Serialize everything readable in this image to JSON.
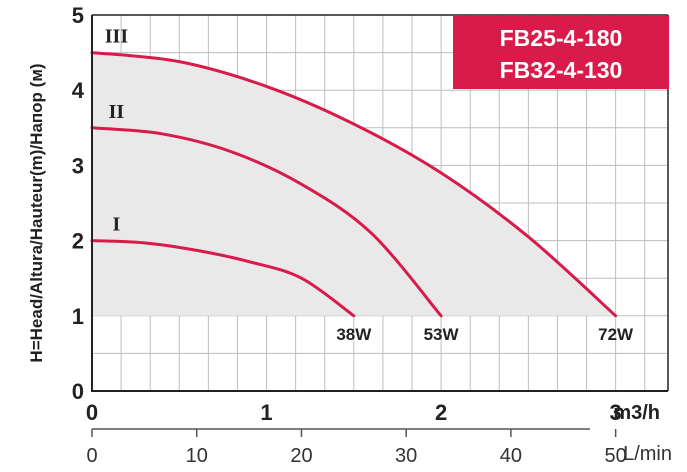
{
  "chart_data": {
    "type": "line",
    "ylabel": "H=Head/Altura/Hauteur(m)/Напор (м)",
    "x_unit": "m3/h",
    "x2_unit": "L/min",
    "xlim": [
      0,
      3.3
    ],
    "ylim": [
      0,
      5
    ],
    "x_ticks": [
      "0",
      "1",
      "2",
      "3"
    ],
    "x2_ticks": [
      "0",
      "10",
      "20",
      "30",
      "40",
      "50"
    ],
    "y_ticks": [
      "0",
      "1",
      "2",
      "3",
      "4",
      "5"
    ],
    "models": [
      "FB25-4-180",
      "FB32-4-130"
    ],
    "grid": true,
    "colors": {
      "curve": "#d81b4a",
      "fill": "#e9e9e9",
      "grid": "#bdbdbd",
      "badge": "#d81b4a"
    },
    "series": [
      {
        "name": "I",
        "power": "38W",
        "points": [
          [
            0,
            2.0
          ],
          [
            0.3,
            1.97
          ],
          [
            0.6,
            1.87
          ],
          [
            0.9,
            1.72
          ],
          [
            1.2,
            1.5
          ],
          [
            1.5,
            1.0
          ]
        ]
      },
      {
        "name": "II",
        "power": "53W",
        "points": [
          [
            0,
            3.5
          ],
          [
            0.4,
            3.42
          ],
          [
            0.8,
            3.18
          ],
          [
            1.2,
            2.75
          ],
          [
            1.6,
            2.1
          ],
          [
            2.0,
            1.0
          ]
        ]
      },
      {
        "name": "III",
        "power": "72W",
        "points": [
          [
            0,
            4.5
          ],
          [
            0.5,
            4.38
          ],
          [
            1.0,
            4.05
          ],
          [
            1.5,
            3.55
          ],
          [
            2.0,
            2.9
          ],
          [
            2.5,
            2.05
          ],
          [
            3.0,
            1.0
          ]
        ]
      }
    ]
  }
}
